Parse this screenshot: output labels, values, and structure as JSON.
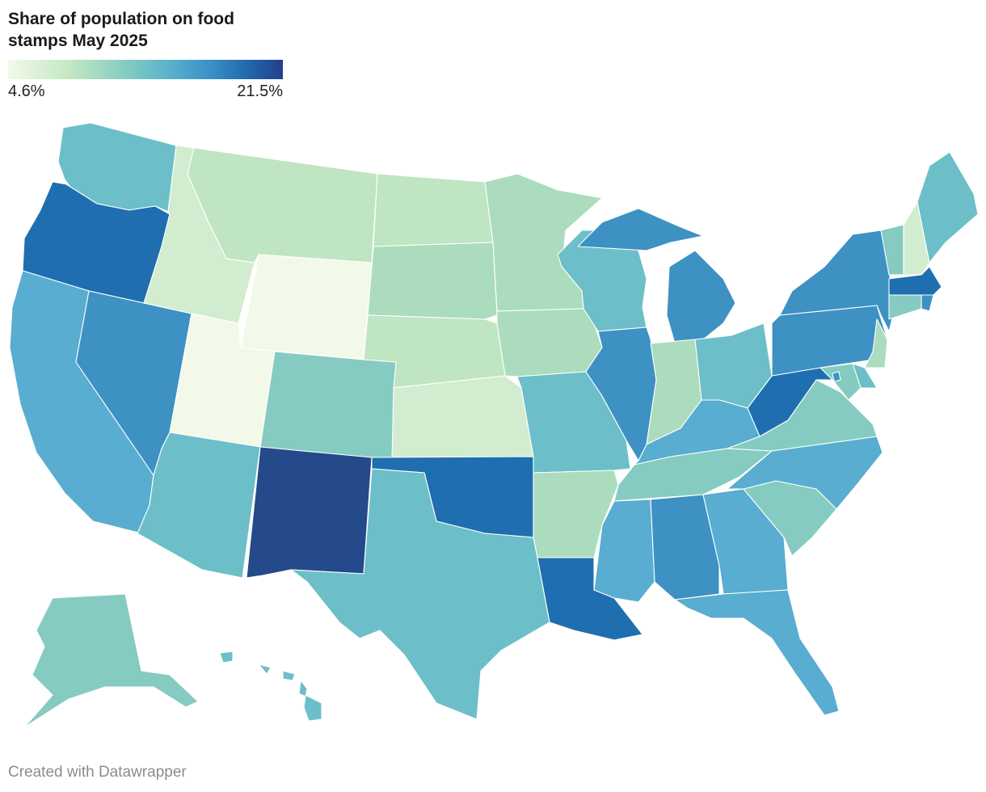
{
  "title": "Share of population on food stamps May 2025",
  "legend": {
    "min_label": "4.6%",
    "max_label": "21.5%"
  },
  "credit": "Created with Datawrapper",
  "palette": {
    "level1": "#f3f9e9",
    "level2": "#d2ecd0",
    "level3": "#bfe5c2",
    "level4": "#abdcbe",
    "level5": "#85cbc1",
    "level6": "#6cbfc8",
    "level7": "#58add0",
    "level8": "#3d91c3",
    "level9": "#1f6fb0",
    "level10": "#244a8c"
  },
  "states": [
    {
      "id": "WA",
      "level": "level6"
    },
    {
      "id": "OR",
      "level": "level9"
    },
    {
      "id": "CA",
      "level": "level7"
    },
    {
      "id": "NV",
      "level": "level8"
    },
    {
      "id": "ID",
      "level": "level2"
    },
    {
      "id": "MT",
      "level": "level3"
    },
    {
      "id": "WY",
      "level": "level1"
    },
    {
      "id": "UT",
      "level": "level1"
    },
    {
      "id": "AZ",
      "level": "level6"
    },
    {
      "id": "CO",
      "level": "level5"
    },
    {
      "id": "NM",
      "level": "level10"
    },
    {
      "id": "ND",
      "level": "level3"
    },
    {
      "id": "SD",
      "level": "level4"
    },
    {
      "id": "NE",
      "level": "level3"
    },
    {
      "id": "KS",
      "level": "level2"
    },
    {
      "id": "OK",
      "level": "level9"
    },
    {
      "id": "TX",
      "level": "level6"
    },
    {
      "id": "MN",
      "level": "level4"
    },
    {
      "id": "IA",
      "level": "level4"
    },
    {
      "id": "MO",
      "level": "level6"
    },
    {
      "id": "AR",
      "level": "level4"
    },
    {
      "id": "LA",
      "level": "level9"
    },
    {
      "id": "WI",
      "level": "level6"
    },
    {
      "id": "IL",
      "level": "level8"
    },
    {
      "id": "MI",
      "level": "level8"
    },
    {
      "id": "IN",
      "level": "level4"
    },
    {
      "id": "OH",
      "level": "level6"
    },
    {
      "id": "KY",
      "level": "level7"
    },
    {
      "id": "TN",
      "level": "level5"
    },
    {
      "id": "MS",
      "level": "level7"
    },
    {
      "id": "AL",
      "level": "level8"
    },
    {
      "id": "GA",
      "level": "level7"
    },
    {
      "id": "FL",
      "level": "level7"
    },
    {
      "id": "SC",
      "level": "level5"
    },
    {
      "id": "NC",
      "level": "level7"
    },
    {
      "id": "VA",
      "level": "level5"
    },
    {
      "id": "WV",
      "level": "level9"
    },
    {
      "id": "PA",
      "level": "level8"
    },
    {
      "id": "NY",
      "level": "level8"
    },
    {
      "id": "VT",
      "level": "level5"
    },
    {
      "id": "NH",
      "level": "level2"
    },
    {
      "id": "ME",
      "level": "level6"
    },
    {
      "id": "MA",
      "level": "level9"
    },
    {
      "id": "RI",
      "level": "level8"
    },
    {
      "id": "CT",
      "level": "level5"
    },
    {
      "id": "NJ",
      "level": "level4"
    },
    {
      "id": "DE",
      "level": "level6"
    },
    {
      "id": "MD",
      "level": "level5"
    },
    {
      "id": "DC",
      "level": "level8"
    },
    {
      "id": "AK",
      "level": "level5"
    },
    {
      "id": "HI",
      "level": "level6"
    }
  ]
}
